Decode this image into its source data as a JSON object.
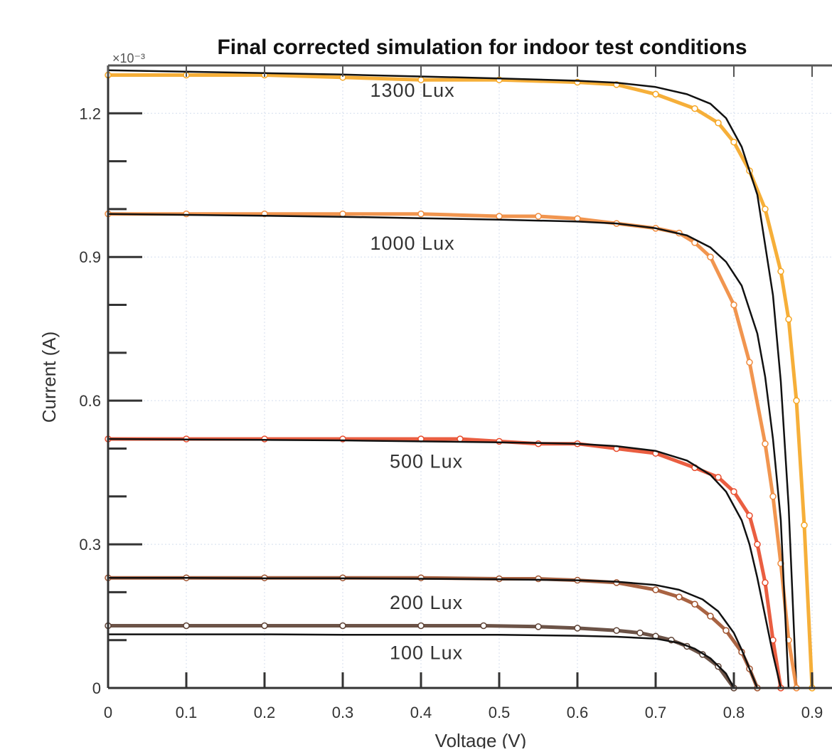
{
  "chart_data": {
    "type": "line",
    "title": "Final corrected simulation for indoor test conditions",
    "xlabel": "Voltage (V)",
    "ylabel": "Current (A)",
    "y_exponent": "×10⁻³",
    "xlim": [
      0,
      0.92
    ],
    "ylim": [
      0,
      1.3
    ],
    "x_ticks": [
      "0",
      "0.1",
      "0.2",
      "0.3",
      "0.4",
      "0.5",
      "0.6",
      "0.7",
      "0.8",
      "0.9"
    ],
    "y_ticks": [
      "0",
      "0.3",
      "0.6",
      "0.9",
      "1.2"
    ],
    "grid": true,
    "annotations": [
      {
        "text": "1300 Lux",
        "x": 0.335,
        "y": 1.235
      },
      {
        "text": "1000 Lux",
        "x": 0.335,
        "y": 0.915
      },
      {
        "text": "500 Lux",
        "x": 0.36,
        "y": 0.46
      },
      {
        "text": "200 Lux",
        "x": 0.36,
        "y": 0.165
      },
      {
        "text": "100 Lux",
        "x": 0.36,
        "y": 0.06
      }
    ],
    "series": [
      {
        "color": "#f5a623",
        "style": "measured",
        "x": [
          0,
          0.1,
          0.2,
          0.3,
          0.4,
          0.5,
          0.6,
          0.65,
          0.7,
          0.75,
          0.78,
          0.8,
          0.82,
          0.84,
          0.86,
          0.87,
          0.88,
          0.89,
          0.9
        ],
        "y": [
          1.28,
          1.28,
          1.28,
          1.275,
          1.27,
          1.27,
          1.265,
          1.26,
          1.24,
          1.21,
          1.18,
          1.14,
          1.08,
          1.0,
          0.87,
          0.77,
          0.6,
          0.34,
          0.0
        ]
      },
      {
        "color": "#111111",
        "style": "model",
        "x": [
          0,
          0.1,
          0.2,
          0.3,
          0.4,
          0.5,
          0.6,
          0.65,
          0.7,
          0.74,
          0.77,
          0.79,
          0.81,
          0.83,
          0.85,
          0.86,
          0.87,
          0.88
        ],
        "y": [
          1.29,
          1.287,
          1.284,
          1.281,
          1.277,
          1.273,
          1.268,
          1.264,
          1.255,
          1.24,
          1.22,
          1.19,
          1.13,
          1.03,
          0.82,
          0.64,
          0.38,
          0.0
        ]
      },
      {
        "color": "#ef8a3c",
        "style": "measured",
        "x": [
          0,
          0.1,
          0.2,
          0.3,
          0.4,
          0.5,
          0.55,
          0.6,
          0.65,
          0.7,
          0.73,
          0.75,
          0.77,
          0.8,
          0.82,
          0.84,
          0.85,
          0.86,
          0.87,
          0.88
        ],
        "y": [
          0.99,
          0.99,
          0.99,
          0.99,
          0.99,
          0.985,
          0.985,
          0.98,
          0.97,
          0.96,
          0.95,
          0.93,
          0.9,
          0.8,
          0.68,
          0.51,
          0.4,
          0.26,
          0.1,
          0.0
        ]
      },
      {
        "color": "#111111",
        "style": "model",
        "x": [
          0,
          0.1,
          0.2,
          0.3,
          0.4,
          0.5,
          0.6,
          0.65,
          0.7,
          0.74,
          0.77,
          0.79,
          0.81,
          0.83,
          0.84,
          0.85,
          0.86,
          0.87
        ],
        "y": [
          0.99,
          0.988,
          0.986,
          0.984,
          0.981,
          0.978,
          0.974,
          0.97,
          0.96,
          0.945,
          0.92,
          0.89,
          0.84,
          0.74,
          0.65,
          0.52,
          0.35,
          0.0
        ]
      },
      {
        "color": "#e84c2c",
        "style": "measured",
        "x": [
          0,
          0.1,
          0.2,
          0.3,
          0.4,
          0.45,
          0.5,
          0.55,
          0.6,
          0.65,
          0.7,
          0.75,
          0.78,
          0.8,
          0.82,
          0.83,
          0.84,
          0.85,
          0.86
        ],
        "y": [
          0.52,
          0.52,
          0.52,
          0.52,
          0.52,
          0.52,
          0.515,
          0.51,
          0.51,
          0.5,
          0.49,
          0.46,
          0.44,
          0.41,
          0.36,
          0.3,
          0.22,
          0.1,
          0.0
        ]
      },
      {
        "color": "#111111",
        "style": "model",
        "x": [
          0,
          0.1,
          0.2,
          0.3,
          0.4,
          0.5,
          0.6,
          0.65,
          0.7,
          0.74,
          0.77,
          0.79,
          0.81,
          0.82,
          0.83,
          0.84,
          0.85,
          0.86
        ],
        "y": [
          0.52,
          0.519,
          0.518,
          0.517,
          0.515,
          0.513,
          0.51,
          0.505,
          0.495,
          0.475,
          0.445,
          0.41,
          0.35,
          0.3,
          0.23,
          0.15,
          0.07,
          0.0
        ]
      },
      {
        "color": "#a0522d",
        "style": "measured",
        "x": [
          0,
          0.1,
          0.2,
          0.3,
          0.4,
          0.5,
          0.55,
          0.6,
          0.65,
          0.7,
          0.73,
          0.75,
          0.77,
          0.79,
          0.81,
          0.82,
          0.83
        ],
        "y": [
          0.23,
          0.23,
          0.23,
          0.23,
          0.23,
          0.228,
          0.228,
          0.225,
          0.22,
          0.205,
          0.19,
          0.175,
          0.15,
          0.12,
          0.075,
          0.04,
          0.0
        ]
      },
      {
        "color": "#111111",
        "style": "model",
        "x": [
          0,
          0.1,
          0.2,
          0.3,
          0.4,
          0.5,
          0.6,
          0.65,
          0.7,
          0.73,
          0.76,
          0.78,
          0.8,
          0.81,
          0.82,
          0.83
        ],
        "y": [
          0.23,
          0.23,
          0.229,
          0.229,
          0.228,
          0.227,
          0.225,
          0.222,
          0.215,
          0.205,
          0.185,
          0.16,
          0.115,
          0.08,
          0.04,
          0.0
        ]
      },
      {
        "color": "#5c4033",
        "style": "measured",
        "x": [
          0,
          0.1,
          0.2,
          0.3,
          0.4,
          0.48,
          0.55,
          0.6,
          0.65,
          0.68,
          0.7,
          0.72,
          0.74,
          0.76,
          0.78,
          0.8
        ],
        "y": [
          0.13,
          0.13,
          0.13,
          0.13,
          0.13,
          0.13,
          0.128,
          0.125,
          0.12,
          0.115,
          0.108,
          0.1,
          0.087,
          0.07,
          0.045,
          0.0
        ]
      },
      {
        "color": "#111111",
        "style": "model",
        "x": [
          0,
          0.1,
          0.2,
          0.3,
          0.4,
          0.5,
          0.6,
          0.65,
          0.7,
          0.73,
          0.75,
          0.77,
          0.79,
          0.8
        ],
        "y": [
          0.112,
          0.112,
          0.112,
          0.111,
          0.111,
          0.111,
          0.109,
          0.107,
          0.103,
          0.094,
          0.082,
          0.062,
          0.03,
          0.0
        ]
      }
    ]
  }
}
